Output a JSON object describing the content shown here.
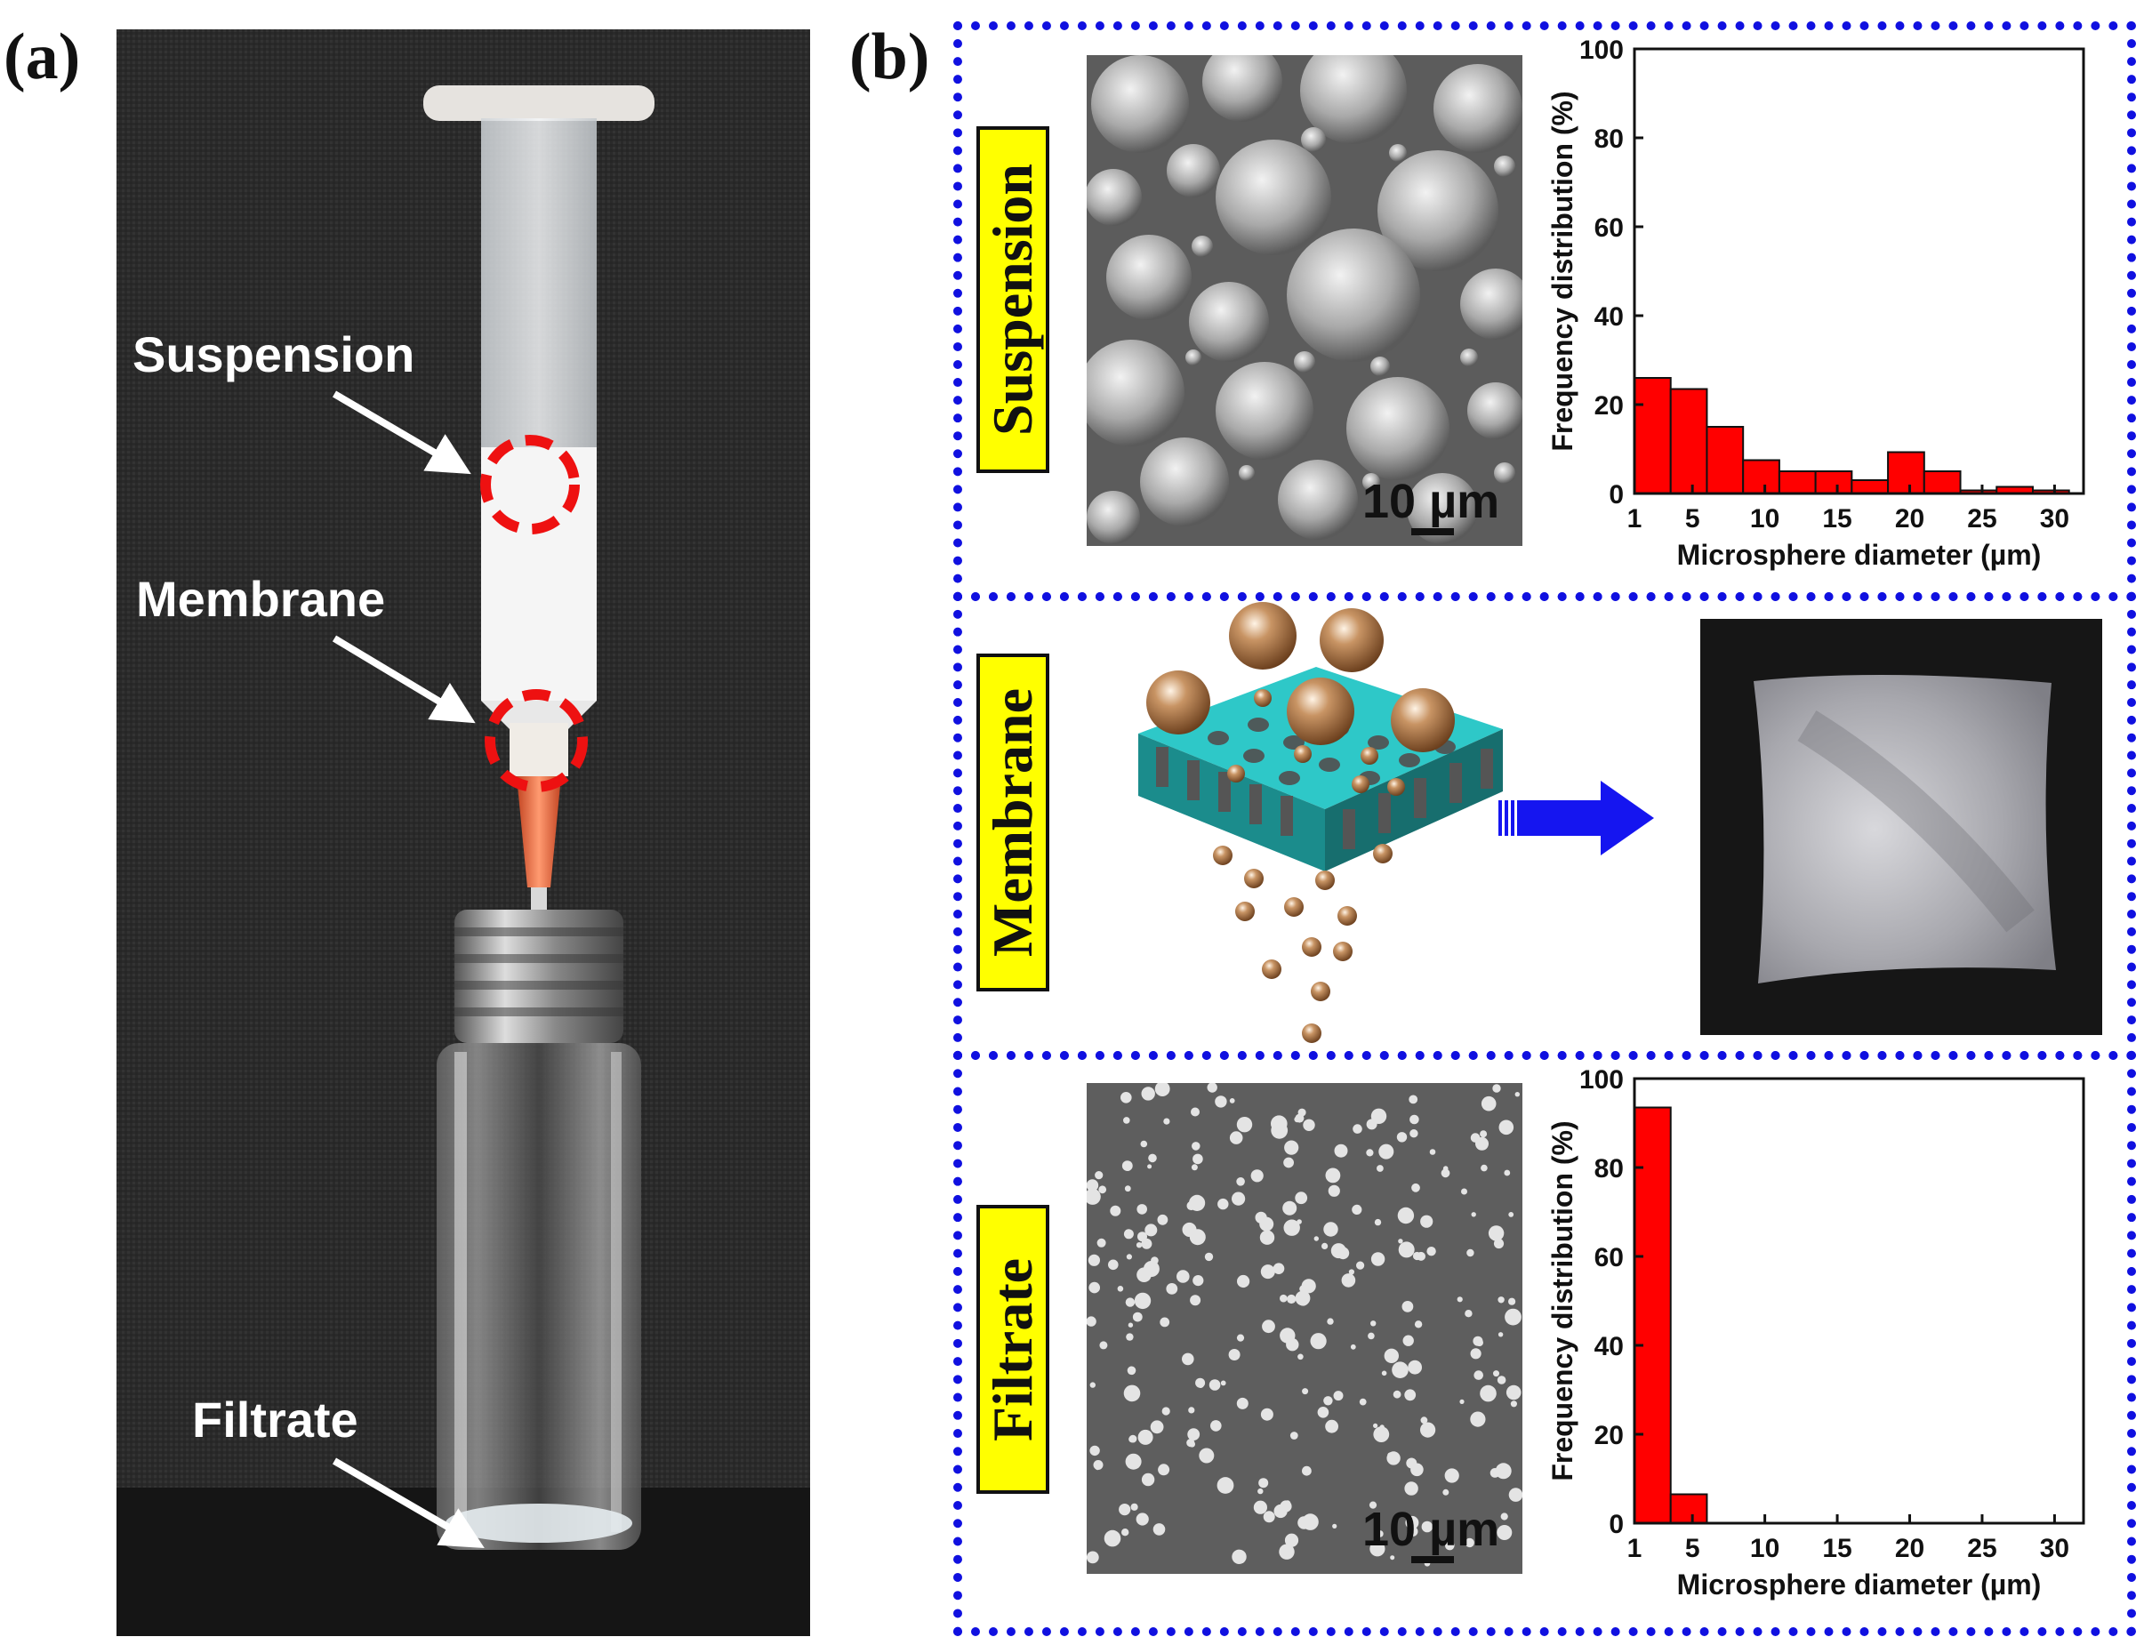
{
  "panel_a": {
    "label": "(a)",
    "annotations": {
      "suspension": "Suspension",
      "membrane": "Membrane",
      "filtrate": "Filtrate"
    }
  },
  "panel_b": {
    "label": "(b)",
    "rows": {
      "suspension": {
        "tag": "Suspension",
        "scale_bar": "10 µm"
      },
      "membrane": {
        "tag": "Membrane"
      },
      "filtrate": {
        "tag": "Filtrate",
        "scale_bar": "10 µm"
      }
    }
  },
  "colors": {
    "bar": "#ff0000",
    "frame": "#1010e0",
    "tag_bg": "#ffff00",
    "membrane": "#2ec8c8",
    "sphere": "#b07b48",
    "arrow": "#1515f0"
  },
  "chart_data": [
    {
      "type": "bar",
      "title": "",
      "xlabel": "Microsphere diameter (µm)",
      "ylabel": "Frequency distribution (%)",
      "xlim": [
        1,
        32
      ],
      "ylim": [
        0,
        100
      ],
      "xticks": [
        1,
        5,
        10,
        15,
        20,
        25,
        30
      ],
      "yticks": [
        0,
        20,
        40,
        60,
        80,
        100
      ],
      "bin_width": 2.5,
      "x": [
        2.25,
        4.75,
        7.25,
        9.75,
        12.25,
        14.75,
        17.25,
        19.75,
        22.25,
        24.75,
        27.25,
        29.75
      ],
      "values": [
        26,
        23.5,
        15,
        7.5,
        5,
        5,
        3,
        9.3,
        5,
        0.7,
        1.5,
        0.7
      ]
    },
    {
      "type": "bar",
      "title": "",
      "xlabel": "Microsphere diameter (µm)",
      "ylabel": "Frequency distribution (%)",
      "xlim": [
        1,
        32
      ],
      "ylim": [
        0,
        100
      ],
      "xticks": [
        1,
        5,
        10,
        15,
        20,
        25,
        30
      ],
      "yticks": [
        0,
        20,
        40,
        60,
        80,
        100
      ],
      "bin_width": 2.5,
      "x": [
        2.25,
        4.75
      ],
      "values": [
        93.5,
        6.5
      ]
    }
  ]
}
